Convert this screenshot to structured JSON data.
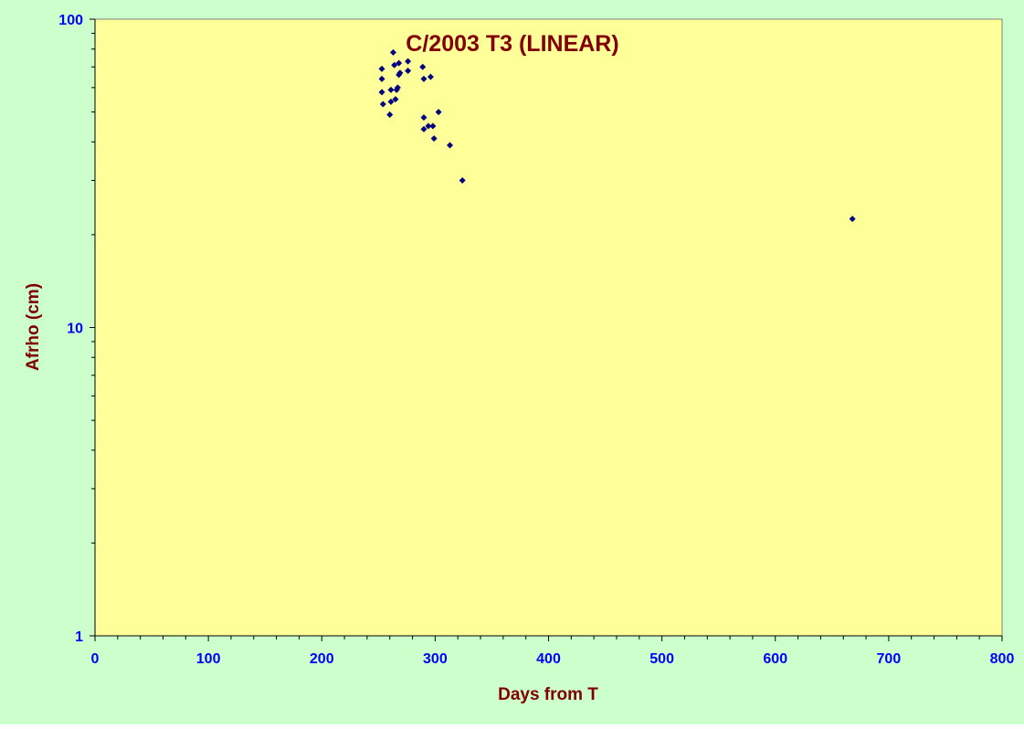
{
  "chart_data": {
    "type": "scatter",
    "title": "C/2003 T3 (LINEAR)",
    "xlabel": "Days from T",
    "ylabel": "Afrho (cm)",
    "xlim": [
      0,
      800
    ],
    "ylim": [
      1,
      100
    ],
    "y_scale": "log",
    "x_ticks": [
      0,
      100,
      200,
      300,
      400,
      500,
      600,
      700,
      800
    ],
    "y_ticks": [
      1,
      10,
      100
    ],
    "grid": false,
    "legend": "none",
    "colors": {
      "outer_background": "#ccffcc",
      "plot_background": "#ffff99",
      "marker": "#000080",
      "title_text": "#800000",
      "axis_label_text": "#800000",
      "tick_label_text": "#0000ff"
    },
    "series": [
      {
        "marker": "diamond",
        "x": [
          253,
          253,
          253,
          254,
          260,
          261,
          261,
          263,
          264,
          265,
          266,
          267,
          268,
          268,
          269,
          276,
          276,
          289,
          290,
          290,
          290,
          294,
          296,
          298,
          299,
          303,
          313,
          324,
          668
        ],
        "y": [
          69,
          64,
          58,
          53,
          49,
          54,
          59,
          78,
          71,
          55,
          59,
          60,
          72,
          66,
          67,
          73,
          68,
          70,
          48,
          44,
          64,
          45,
          65,
          45,
          41,
          50,
          39,
          30,
          22.5
        ]
      }
    ]
  }
}
